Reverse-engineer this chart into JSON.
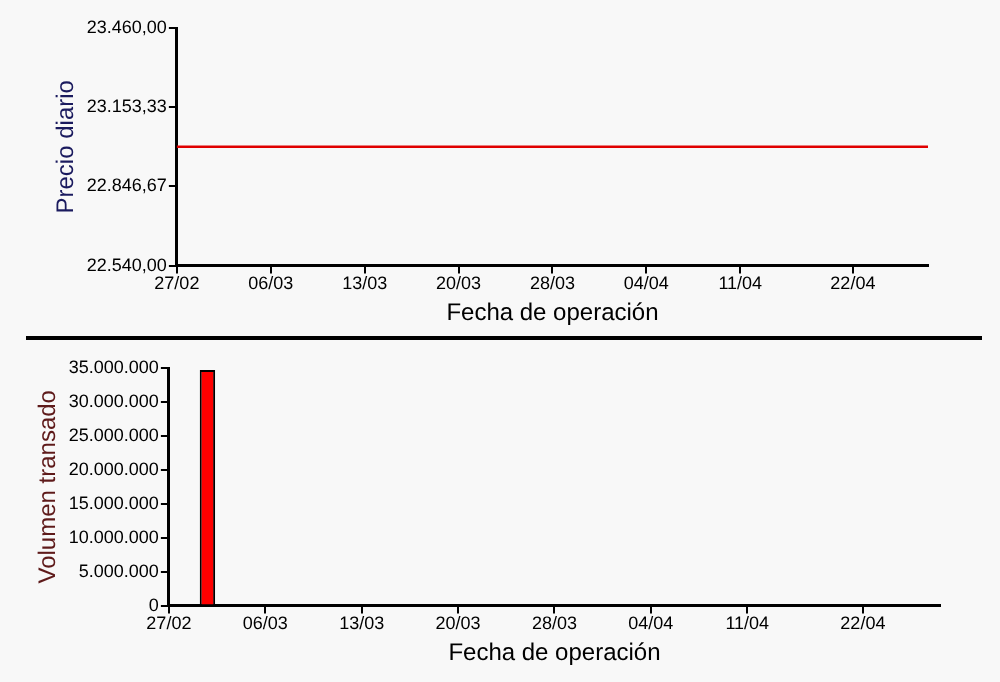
{
  "chart_data": [
    {
      "type": "line",
      "xlabel": "Fecha de operación",
      "ylabel": "Precio diario",
      "categories": [
        "27/02",
        null,
        null,
        null,
        null,
        "06/03",
        null,
        null,
        null,
        null,
        "13/03",
        null,
        null,
        null,
        null,
        "20/03",
        null,
        null,
        null,
        null,
        "28/03",
        null,
        null,
        null,
        null,
        "04/04",
        null,
        null,
        null,
        null,
        "11/04",
        null,
        null,
        null,
        null,
        null,
        "22/04",
        null,
        null,
        null,
        null
      ],
      "series": [
        {
          "color": "#e00000",
          "values": [
            23000,
            23000,
            23000,
            23000,
            23000,
            23000,
            23000,
            23000,
            23000,
            23000,
            23000,
            23000,
            23000,
            23000,
            23000,
            23000,
            23000,
            23000,
            23000,
            23000,
            23000,
            23000,
            23000,
            23000,
            23000,
            23000,
            23000,
            23000,
            23000,
            23000,
            23000,
            23000,
            23000,
            23000,
            23000,
            23000,
            23000,
            23000,
            23000,
            23000,
            23000
          ]
        }
      ],
      "ylim": [
        22540,
        23460
      ],
      "yticks": [
        {
          "value": 22540,
          "label": "22.540,00"
        },
        {
          "value": 22846.67,
          "label": "22.846,67"
        },
        {
          "value": 23153.33,
          "label": "23.153,33"
        },
        {
          "value": 23460,
          "label": "23.460,00"
        }
      ],
      "grid": false,
      "legend": false,
      "marker": "none"
    },
    {
      "type": "bar",
      "xlabel": "Fecha de operación",
      "ylabel": "Volumen transado",
      "categories": [
        "27/02",
        null,
        null,
        null,
        null,
        "06/03",
        null,
        null,
        null,
        null,
        "13/03",
        null,
        null,
        null,
        null,
        "20/03",
        null,
        null,
        null,
        null,
        "28/03",
        null,
        null,
        null,
        null,
        "04/04",
        null,
        null,
        null,
        null,
        "11/04",
        null,
        null,
        null,
        null,
        null,
        "22/04",
        null,
        null,
        null,
        null
      ],
      "series": [
        {
          "color": "#ff0000",
          "values": [
            null,
            null,
            34700000,
            null,
            null,
            null,
            null,
            null,
            null,
            null,
            null,
            null,
            null,
            null,
            null,
            null,
            null,
            null,
            null,
            null,
            null,
            null,
            null,
            null,
            null,
            null,
            null,
            null,
            null,
            null,
            null,
            null,
            null,
            null,
            null,
            null,
            null,
            null,
            null,
            null,
            null
          ]
        }
      ],
      "ylim": [
        0,
        35000000
      ],
      "yticks": [
        {
          "value": 0,
          "label": "0"
        },
        {
          "value": 5000000,
          "label": "5.000.000"
        },
        {
          "value": 10000000,
          "label": "10.000.000"
        },
        {
          "value": 15000000,
          "label": "15.000.000"
        },
        {
          "value": 20000000,
          "label": "20.000.000"
        },
        {
          "value": 25000000,
          "label": "25.000.000"
        },
        {
          "value": 30000000,
          "label": "30.000.000"
        },
        {
          "value": 35000000,
          "label": "35.000.000"
        }
      ],
      "grid": false,
      "legend": false
    }
  ]
}
